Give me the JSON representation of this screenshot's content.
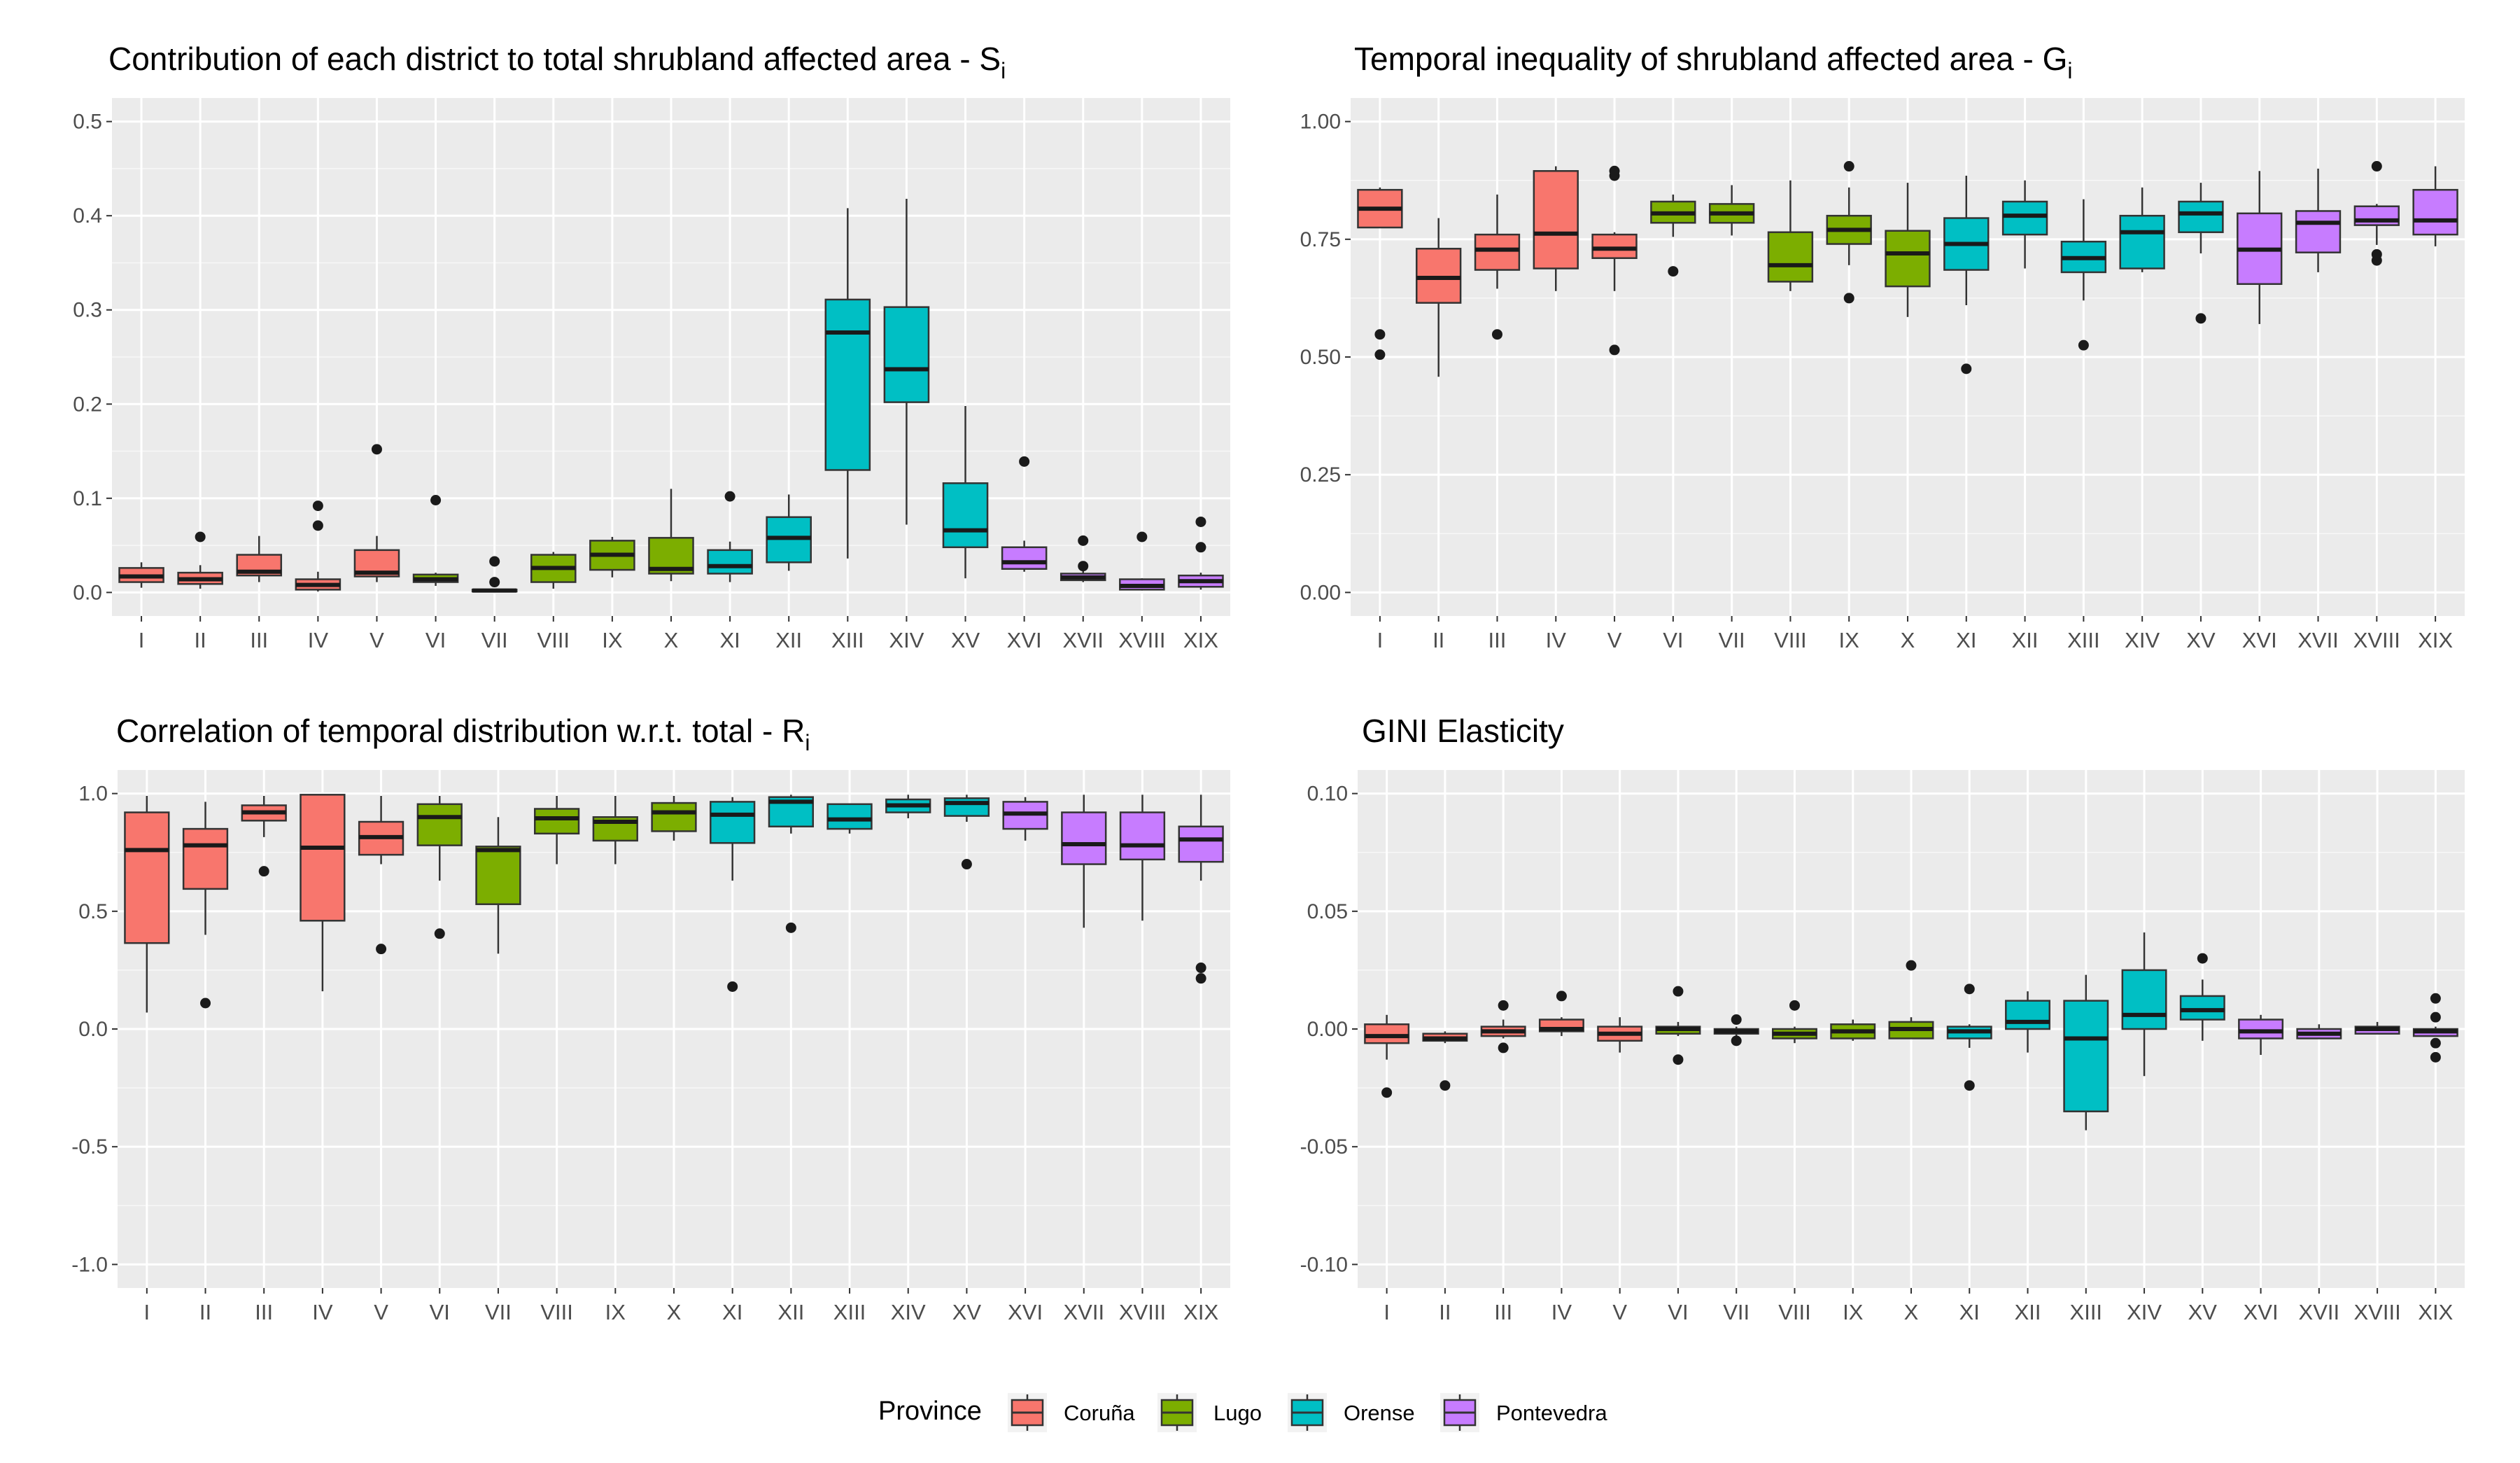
{
  "legend": {
    "title": "Province",
    "items": [
      {
        "label": "Coruña",
        "color": "#F8766D"
      },
      {
        "label": "Lugo",
        "color": "#7CAE00"
      },
      {
        "label": "Orense",
        "color": "#00BFC4"
      },
      {
        "label": "Pontevedra",
        "color": "#C77CFF"
      }
    ]
  },
  "chart_data": [
    {
      "type": "boxplot",
      "title": "Contribution of each district to total shrubland affected area - S",
      "title_sub": "i",
      "ylim": [
        -0.025,
        0.525
      ],
      "yticks": [
        0,
        0.1,
        0.2,
        0.3,
        0.4,
        0.5
      ],
      "ytick_labels": [
        "0.0",
        "0.1",
        "0.2",
        "0.3",
        "0.4",
        "0.5"
      ],
      "categories": [
        "I",
        "II",
        "III",
        "IV",
        "V",
        "VI",
        "VII",
        "VIII",
        "IX",
        "X",
        "XI",
        "XII",
        "XIII",
        "XIV",
        "XV",
        "XVI",
        "XVII",
        "XVIII",
        "XIX"
      ],
      "province_index": [
        0,
        0,
        0,
        0,
        0,
        1,
        1,
        1,
        1,
        1,
        2,
        2,
        2,
        2,
        2,
        3,
        3,
        3,
        3
      ],
      "boxes": [
        {
          "lw": 0.005,
          "q1": 0.011,
          "med": 0.017,
          "q3": 0.026,
          "uw": 0.032,
          "out": []
        },
        {
          "lw": 0.004,
          "q1": 0.009,
          "med": 0.014,
          "q3": 0.021,
          "uw": 0.029,
          "out": [
            0.059
          ]
        },
        {
          "lw": 0.011,
          "q1": 0.018,
          "med": 0.022,
          "q3": 0.04,
          "uw": 0.06,
          "out": []
        },
        {
          "lw": 0.001,
          "q1": 0.003,
          "med": 0.008,
          "q3": 0.014,
          "uw": 0.022,
          "out": [
            0.071,
            0.092
          ]
        },
        {
          "lw": 0.011,
          "q1": 0.017,
          "med": 0.021,
          "q3": 0.045,
          "uw": 0.06,
          "out": [
            0.152
          ]
        },
        {
          "lw": 0.007,
          "q1": 0.011,
          "med": 0.014,
          "q3": 0.019,
          "uw": 0.021,
          "out": [
            0.098
          ]
        },
        {
          "lw": 0.0,
          "q1": 0.001,
          "med": 0.002,
          "q3": 0.003,
          "uw": 0.004,
          "out": [
            0.011,
            0.033
          ]
        },
        {
          "lw": 0.004,
          "q1": 0.011,
          "med": 0.026,
          "q3": 0.04,
          "uw": 0.043,
          "out": []
        },
        {
          "lw": 0.016,
          "q1": 0.024,
          "med": 0.04,
          "q3": 0.055,
          "uw": 0.059,
          "out": []
        },
        {
          "lw": 0.012,
          "q1": 0.02,
          "med": 0.025,
          "q3": 0.058,
          "uw": 0.11,
          "out": []
        },
        {
          "lw": 0.011,
          "q1": 0.02,
          "med": 0.028,
          "q3": 0.045,
          "uw": 0.054,
          "out": [
            0.102
          ]
        },
        {
          "lw": 0.023,
          "q1": 0.032,
          "med": 0.058,
          "q3": 0.08,
          "uw": 0.104,
          "out": []
        },
        {
          "lw": 0.036,
          "q1": 0.13,
          "med": 0.276,
          "q3": 0.311,
          "uw": 0.408,
          "out": []
        },
        {
          "lw": 0.072,
          "q1": 0.202,
          "med": 0.237,
          "q3": 0.303,
          "uw": 0.418,
          "out": []
        },
        {
          "lw": 0.015,
          "q1": 0.048,
          "med": 0.066,
          "q3": 0.116,
          "uw": 0.198,
          "out": []
        },
        {
          "lw": 0.022,
          "q1": 0.025,
          "med": 0.032,
          "q3": 0.048,
          "uw": 0.055,
          "out": [
            0.139
          ]
        },
        {
          "lw": 0.011,
          "q1": 0.013,
          "med": 0.016,
          "q3": 0.02,
          "uw": 0.024,
          "out": [
            0.028,
            0.055
          ]
        },
        {
          "lw": 0.002,
          "q1": 0.003,
          "med": 0.007,
          "q3": 0.014,
          "uw": 0.015,
          "out": [
            0.059
          ]
        },
        {
          "lw": 0.003,
          "q1": 0.006,
          "med": 0.012,
          "q3": 0.018,
          "uw": 0.021,
          "out": [
            0.048,
            0.075
          ]
        }
      ]
    },
    {
      "type": "boxplot",
      "title": "Temporal inequality of shrubland affected area - G",
      "title_sub": "i",
      "ylim": [
        -0.05,
        1.05
      ],
      "yticks": [
        0,
        0.25,
        0.5,
        0.75,
        1.0
      ],
      "ytick_labels": [
        "0.00",
        "0.25",
        "0.50",
        "0.75",
        "1.00"
      ],
      "categories": [
        "I",
        "II",
        "III",
        "IV",
        "V",
        "VI",
        "VII",
        "VIII",
        "IX",
        "X",
        "XI",
        "XII",
        "XIII",
        "XIV",
        "XV",
        "XVI",
        "XVII",
        "XVIII",
        "XIX"
      ],
      "province_index": [
        0,
        0,
        0,
        0,
        0,
        1,
        1,
        1,
        1,
        1,
        2,
        2,
        2,
        2,
        2,
        3,
        3,
        3,
        3
      ],
      "boxes": [
        {
          "lw": 0.775,
          "q1": 0.775,
          "med": 0.815,
          "q3": 0.855,
          "uw": 0.86,
          "out": [
            0.505,
            0.548
          ]
        },
        {
          "lw": 0.458,
          "q1": 0.615,
          "med": 0.668,
          "q3": 0.73,
          "uw": 0.795,
          "out": []
        },
        {
          "lw": 0.645,
          "q1": 0.685,
          "med": 0.728,
          "q3": 0.76,
          "uw": 0.845,
          "out": [
            0.548
          ]
        },
        {
          "lw": 0.64,
          "q1": 0.688,
          "med": 0.762,
          "q3": 0.895,
          "uw": 0.905,
          "out": []
        },
        {
          "lw": 0.64,
          "q1": 0.71,
          "med": 0.73,
          "q3": 0.76,
          "uw": 0.765,
          "out": [
            0.515,
            0.885,
            0.895
          ]
        },
        {
          "lw": 0.755,
          "q1": 0.785,
          "med": 0.805,
          "q3": 0.83,
          "uw": 0.845,
          "out": [
            0.682
          ]
        },
        {
          "lw": 0.758,
          "q1": 0.785,
          "med": 0.805,
          "q3": 0.825,
          "uw": 0.865,
          "out": []
        },
        {
          "lw": 0.64,
          "q1": 0.66,
          "med": 0.695,
          "q3": 0.765,
          "uw": 0.875,
          "out": []
        },
        {
          "lw": 0.695,
          "q1": 0.74,
          "med": 0.77,
          "q3": 0.8,
          "uw": 0.86,
          "out": [
            0.625,
            0.905
          ]
        },
        {
          "lw": 0.585,
          "q1": 0.65,
          "med": 0.72,
          "q3": 0.768,
          "uw": 0.87,
          "out": []
        },
        {
          "lw": 0.61,
          "q1": 0.685,
          "med": 0.74,
          "q3": 0.795,
          "uw": 0.885,
          "out": [
            0.475
          ]
        },
        {
          "lw": 0.688,
          "q1": 0.76,
          "med": 0.8,
          "q3": 0.83,
          "uw": 0.875,
          "out": []
        },
        {
          "lw": 0.62,
          "q1": 0.68,
          "med": 0.71,
          "q3": 0.745,
          "uw": 0.835,
          "out": [
            0.525
          ]
        },
        {
          "lw": 0.68,
          "q1": 0.688,
          "med": 0.765,
          "q3": 0.8,
          "uw": 0.86,
          "out": []
        },
        {
          "lw": 0.72,
          "q1": 0.765,
          "med": 0.805,
          "q3": 0.83,
          "uw": 0.87,
          "out": [
            0.582
          ]
        },
        {
          "lw": 0.57,
          "q1": 0.655,
          "med": 0.728,
          "q3": 0.805,
          "uw": 0.895,
          "out": []
        },
        {
          "lw": 0.68,
          "q1": 0.722,
          "med": 0.785,
          "q3": 0.81,
          "uw": 0.9,
          "out": []
        },
        {
          "lw": 0.738,
          "q1": 0.78,
          "med": 0.79,
          "q3": 0.82,
          "uw": 0.825,
          "out": [
            0.705,
            0.718,
            0.905
          ]
        },
        {
          "lw": 0.735,
          "q1": 0.76,
          "med": 0.79,
          "q3": 0.855,
          "uw": 0.905,
          "out": []
        }
      ]
    },
    {
      "type": "boxplot",
      "title": "Correlation of temporal distribution w.r.t. total - R",
      "title_sub": "i",
      "ylim": [
        -1.1,
        1.1
      ],
      "yticks": [
        -1.0,
        -0.5,
        0,
        0.5,
        1.0
      ],
      "ytick_labels": [
        "-1.0",
        "-0.5",
        "0.0",
        "0.5",
        "1.0"
      ],
      "categories": [
        "I",
        "II",
        "III",
        "IV",
        "V",
        "VI",
        "VII",
        "VIII",
        "IX",
        "X",
        "XI",
        "XII",
        "XIII",
        "XIV",
        "XV",
        "XVI",
        "XVII",
        "XVIII",
        "XIX"
      ],
      "province_index": [
        0,
        0,
        0,
        0,
        0,
        1,
        1,
        1,
        1,
        1,
        2,
        2,
        2,
        2,
        2,
        3,
        3,
        3,
        3
      ],
      "boxes": [
        {
          "lw": 0.07,
          "q1": 0.365,
          "med": 0.76,
          "q3": 0.92,
          "uw": 0.99,
          "out": []
        },
        {
          "lw": 0.4,
          "q1": 0.595,
          "med": 0.78,
          "q3": 0.85,
          "uw": 0.965,
          "out": [
            0.11
          ]
        },
        {
          "lw": 0.815,
          "q1": 0.885,
          "med": 0.92,
          "q3": 0.95,
          "uw": 0.99,
          "out": [
            0.67
          ]
        },
        {
          "lw": 0.16,
          "q1": 0.46,
          "med": 0.77,
          "q3": 0.995,
          "uw": 0.995,
          "out": []
        },
        {
          "lw": 0.7,
          "q1": 0.74,
          "med": 0.815,
          "q3": 0.88,
          "uw": 0.99,
          "out": [
            0.34
          ]
        },
        {
          "lw": 0.63,
          "q1": 0.78,
          "med": 0.9,
          "q3": 0.955,
          "uw": 0.99,
          "out": [
            0.405
          ]
        },
        {
          "lw": 0.32,
          "q1": 0.53,
          "med": 0.76,
          "q3": 0.775,
          "uw": 0.9,
          "out": []
        },
        {
          "lw": 0.7,
          "q1": 0.83,
          "med": 0.895,
          "q3": 0.935,
          "uw": 0.99,
          "out": []
        },
        {
          "lw": 0.7,
          "q1": 0.8,
          "med": 0.88,
          "q3": 0.9,
          "uw": 0.99,
          "out": []
        },
        {
          "lw": 0.8,
          "q1": 0.84,
          "med": 0.92,
          "q3": 0.96,
          "uw": 0.99,
          "out": []
        },
        {
          "lw": 0.63,
          "q1": 0.79,
          "med": 0.91,
          "q3": 0.965,
          "uw": 0.985,
          "out": [
            0.18
          ]
        },
        {
          "lw": 0.83,
          "q1": 0.86,
          "med": 0.965,
          "q3": 0.985,
          "uw": 0.995,
          "out": [
            0.43
          ]
        },
        {
          "lw": 0.83,
          "q1": 0.85,
          "med": 0.89,
          "q3": 0.955,
          "uw": 0.955,
          "out": []
        },
        {
          "lw": 0.895,
          "q1": 0.92,
          "med": 0.95,
          "q3": 0.975,
          "uw": 0.995,
          "out": []
        },
        {
          "lw": 0.88,
          "q1": 0.905,
          "med": 0.96,
          "q3": 0.98,
          "uw": 0.995,
          "out": [
            0.7
          ]
        },
        {
          "lw": 0.8,
          "q1": 0.85,
          "med": 0.915,
          "q3": 0.965,
          "uw": 0.985,
          "out": []
        },
        {
          "lw": 0.43,
          "q1": 0.7,
          "med": 0.785,
          "q3": 0.92,
          "uw": 0.995,
          "out": []
        },
        {
          "lw": 0.46,
          "q1": 0.72,
          "med": 0.78,
          "q3": 0.92,
          "uw": 0.995,
          "out": []
        },
        {
          "lw": 0.63,
          "q1": 0.71,
          "med": 0.805,
          "q3": 0.86,
          "uw": 0.995,
          "out": [
            0.215,
            0.26
          ]
        }
      ]
    },
    {
      "type": "boxplot",
      "title": "GINI Elasticity",
      "title_sub": "",
      "ylim": [
        -0.11,
        0.11
      ],
      "yticks": [
        -0.1,
        -0.05,
        0,
        0.05,
        0.1
      ],
      "ytick_labels": [
        "-0.10",
        "-0.05",
        "0.00",
        "0.05",
        "0.10"
      ],
      "categories": [
        "I",
        "II",
        "III",
        "IV",
        "V",
        "VI",
        "VII",
        "VIII",
        "IX",
        "X",
        "XI",
        "XII",
        "XIII",
        "XIV",
        "XV",
        "XVI",
        "XVII",
        "XVIII",
        "XIX"
      ],
      "province_index": [
        0,
        0,
        0,
        0,
        0,
        1,
        1,
        1,
        1,
        1,
        2,
        2,
        2,
        2,
        2,
        3,
        3,
        3,
        3
      ],
      "boxes": [
        {
          "lw": -0.013,
          "q1": -0.006,
          "med": -0.003,
          "q3": 0.002,
          "uw": 0.006,
          "out": [
            -0.027
          ]
        },
        {
          "lw": -0.006,
          "q1": -0.005,
          "med": -0.004,
          "q3": -0.002,
          "uw": -0.001,
          "out": [
            -0.024
          ]
        },
        {
          "lw": -0.004,
          "q1": -0.003,
          "med": -0.001,
          "q3": 0.001,
          "uw": 0.004,
          "out": [
            -0.008,
            0.01
          ]
        },
        {
          "lw": -0.003,
          "q1": -0.001,
          "med": 0.0,
          "q3": 0.004,
          "uw": 0.005,
          "out": [
            0.014
          ]
        },
        {
          "lw": -0.01,
          "q1": -0.005,
          "med": -0.002,
          "q3": 0.001,
          "uw": 0.005,
          "out": []
        },
        {
          "lw": -0.003,
          "q1": -0.002,
          "med": 0.0,
          "q3": 0.001,
          "uw": 0.003,
          "out": [
            -0.013,
            0.016
          ]
        },
        {
          "lw": -0.003,
          "q1": -0.002,
          "med": -0.001,
          "q3": 0.0,
          "uw": 0.001,
          "out": [
            -0.005,
            0.004
          ]
        },
        {
          "lw": -0.006,
          "q1": -0.004,
          "med": -0.002,
          "q3": 0.0,
          "uw": 0.001,
          "out": [
            0.01
          ]
        },
        {
          "lw": -0.005,
          "q1": -0.004,
          "med": -0.001,
          "q3": 0.002,
          "uw": 0.004,
          "out": []
        },
        {
          "lw": -0.004,
          "q1": -0.004,
          "med": 0.0,
          "q3": 0.003,
          "uw": 0.005,
          "out": [
            0.027
          ]
        },
        {
          "lw": -0.008,
          "q1": -0.004,
          "med": -0.001,
          "q3": 0.001,
          "uw": 0.002,
          "out": [
            -0.024,
            0.017
          ]
        },
        {
          "lw": -0.01,
          "q1": 0.0,
          "med": 0.003,
          "q3": 0.012,
          "uw": 0.016,
          "out": []
        },
        {
          "lw": -0.043,
          "q1": -0.035,
          "med": -0.004,
          "q3": 0.012,
          "uw": 0.023,
          "out": []
        },
        {
          "lw": -0.02,
          "q1": 0.0,
          "med": 0.006,
          "q3": 0.025,
          "uw": 0.041,
          "out": []
        },
        {
          "lw": -0.005,
          "q1": 0.004,
          "med": 0.008,
          "q3": 0.014,
          "uw": 0.021,
          "out": [
            0.03
          ]
        },
        {
          "lw": -0.011,
          "q1": -0.004,
          "med": -0.001,
          "q3": 0.004,
          "uw": 0.006,
          "out": []
        },
        {
          "lw": -0.004,
          "q1": -0.004,
          "med": -0.002,
          "q3": 0.0,
          "uw": 0.002,
          "out": []
        },
        {
          "lw": -0.002,
          "q1": -0.002,
          "med": 0.0,
          "q3": 0.001,
          "uw": 0.003,
          "out": []
        },
        {
          "lw": -0.003,
          "q1": -0.003,
          "med": -0.001,
          "q3": 0.0,
          "uw": 0.001,
          "out": [
            -0.012,
            -0.006,
            0.005,
            0.013
          ]
        }
      ]
    }
  ]
}
